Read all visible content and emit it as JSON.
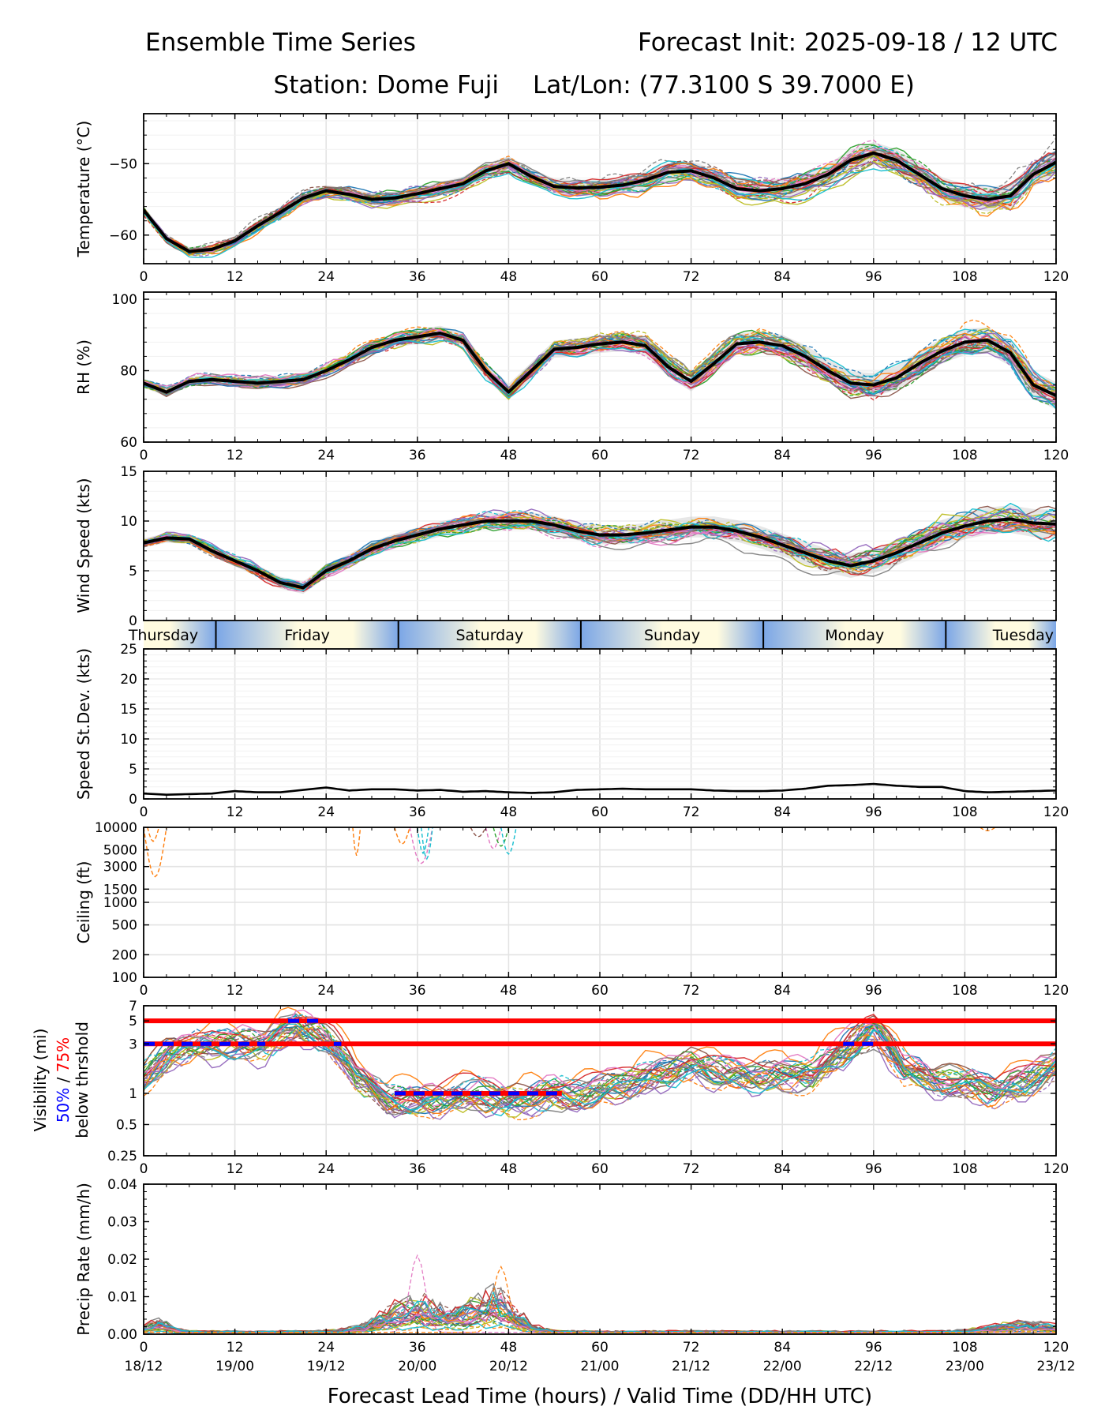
{
  "header": {
    "title_left": "Ensemble Time Series",
    "title_right": "Forecast Init: 2025-09-18 / 12 UTC",
    "station": "Station: Dome Fuji",
    "latlon": "Lat/Lon: (77.3100 S 39.7000 E)"
  },
  "x_axis": {
    "label": "Forecast Lead Time (hours) / Valid Time (DD/HH UTC)",
    "ticks": [
      0,
      12,
      24,
      36,
      48,
      60,
      72,
      84,
      96,
      108,
      120
    ],
    "valid_times": [
      "18/12",
      "19/00",
      "19/12",
      "20/00",
      "20/12",
      "21/00",
      "21/12",
      "22/00",
      "22/12",
      "23/00",
      "23/12"
    ],
    "range": [
      0,
      120
    ]
  },
  "day_band": {
    "days": [
      {
        "label": "Thursday",
        "start": 0,
        "end": 9.5
      },
      {
        "label": "Friday",
        "start": 9.5,
        "end": 33.5
      },
      {
        "label": "Saturday",
        "start": 33.5,
        "end": 57.5
      },
      {
        "label": "Sunday",
        "start": 57.5,
        "end": 81.5
      },
      {
        "label": "Monday",
        "start": 81.5,
        "end": 105.5
      },
      {
        "label": "Tuesday",
        "start": 105.5,
        "end": 120
      }
    ]
  },
  "chart_data": [
    {
      "id": "temperature",
      "type": "line",
      "ylabel": "Temperature (°C)",
      "ylim": [
        -64,
        -43
      ],
      "yticks": [
        -60,
        -50
      ],
      "ytick_labels": [
        "−60",
        "−50"
      ],
      "grid": true,
      "ensemble_members": 30,
      "mean": {
        "x": [
          0,
          3,
          6,
          9,
          12,
          15,
          18,
          21,
          24,
          27,
          30,
          33,
          36,
          39,
          42,
          45,
          48,
          51,
          54,
          57,
          60,
          63,
          66,
          69,
          72,
          75,
          78,
          81,
          84,
          87,
          90,
          93,
          96,
          99,
          102,
          105,
          108,
          111,
          114,
          117,
          120
        ],
        "y": [
          -56.5,
          -60.5,
          -62.3,
          -62.0,
          -60.8,
          -58.7,
          -56.8,
          -54.8,
          -53.8,
          -54.3,
          -55.0,
          -54.8,
          -54.2,
          -53.5,
          -52.8,
          -51.0,
          -50.0,
          -51.8,
          -53.2,
          -53.4,
          -53.3,
          -53.0,
          -52.3,
          -51.2,
          -51.0,
          -52.0,
          -53.5,
          -53.8,
          -53.5,
          -52.8,
          -51.5,
          -49.5,
          -48.5,
          -49.5,
          -51.5,
          -53.5,
          -54.5,
          -55.0,
          -54.5,
          -51.5,
          -49.8
        ]
      }
    },
    {
      "id": "rh",
      "type": "line",
      "ylabel": "RH (%)",
      "ylim": [
        60,
        102
      ],
      "yticks": [
        60,
        80,
        100
      ],
      "ytick_labels": [
        "60",
        "80",
        "100"
      ],
      "grid": true,
      "ensemble_members": 30,
      "mean": {
        "x": [
          0,
          3,
          6,
          9,
          12,
          15,
          18,
          21,
          24,
          27,
          30,
          33,
          36,
          39,
          42,
          45,
          48,
          51,
          54,
          57,
          60,
          63,
          66,
          69,
          72,
          75,
          78,
          81,
          84,
          87,
          90,
          93,
          96,
          99,
          102,
          105,
          108,
          111,
          114,
          117,
          120
        ],
        "y": [
          76.5,
          74.0,
          77.0,
          77.5,
          77.0,
          76.5,
          77.0,
          77.5,
          80.0,
          83.0,
          86.5,
          88.5,
          89.5,
          90.5,
          88.5,
          80.0,
          74.0,
          80.0,
          86.0,
          86.5,
          87.5,
          88.0,
          87.0,
          81.0,
          77.0,
          82.0,
          87.5,
          88.0,
          87.0,
          84.0,
          80.0,
          76.5,
          76.0,
          78.0,
          82.0,
          85.5,
          88.0,
          88.5,
          85.0,
          76.0,
          73.0
        ]
      }
    },
    {
      "id": "wind_speed",
      "type": "line",
      "ylabel": "Wind Speed (kts)",
      "ylim": [
        0,
        15
      ],
      "yticks": [
        0,
        5,
        10,
        15
      ],
      "ytick_labels": [
        "0",
        "5",
        "10",
        "15"
      ],
      "grid": true,
      "ensemble_members": 30,
      "mean": {
        "x": [
          0,
          3,
          6,
          9,
          12,
          15,
          18,
          21,
          24,
          27,
          30,
          33,
          36,
          39,
          42,
          45,
          48,
          51,
          54,
          57,
          60,
          63,
          66,
          69,
          72,
          75,
          78,
          81,
          84,
          87,
          90,
          93,
          96,
          99,
          102,
          105,
          108,
          111,
          114,
          117,
          120
        ],
        "y": [
          7.8,
          8.3,
          8.2,
          7.0,
          6.0,
          5.0,
          3.8,
          3.3,
          5.0,
          6.0,
          7.2,
          8.0,
          8.6,
          9.2,
          9.6,
          10.0,
          10.0,
          10.0,
          9.6,
          9.0,
          8.6,
          8.6,
          8.8,
          9.1,
          9.4,
          9.4,
          9.0,
          8.4,
          7.6,
          6.8,
          6.0,
          5.5,
          6.0,
          6.8,
          7.8,
          8.8,
          9.5,
          10.0,
          10.2,
          9.8,
          9.7
        ]
      }
    },
    {
      "id": "speed_stdev",
      "type": "line",
      "ylabel": "Speed St.Dev. (kts)",
      "ylim": [
        0,
        25
      ],
      "yticks": [
        0,
        5,
        10,
        15,
        20,
        25
      ],
      "ytick_labels": [
        "0",
        "5",
        "10",
        "15",
        "20",
        "25"
      ],
      "grid": true,
      "series": [
        {
          "name": "St.Dev.",
          "x": [
            0,
            3,
            6,
            9,
            12,
            15,
            18,
            21,
            24,
            27,
            30,
            33,
            36,
            39,
            42,
            45,
            48,
            51,
            54,
            57,
            60,
            63,
            66,
            69,
            72,
            75,
            78,
            81,
            84,
            87,
            90,
            93,
            96,
            99,
            102,
            105,
            108,
            111,
            114,
            117,
            120
          ],
          "y": [
            0.9,
            0.7,
            0.8,
            0.9,
            1.3,
            1.1,
            1.1,
            1.5,
            1.9,
            1.4,
            1.6,
            1.6,
            1.4,
            1.5,
            1.2,
            1.3,
            1.1,
            1.0,
            1.1,
            1.5,
            1.6,
            1.7,
            1.6,
            1.6,
            1.6,
            1.4,
            1.3,
            1.3,
            1.4,
            1.7,
            2.2,
            2.3,
            2.5,
            2.2,
            2.0,
            2.0,
            1.3,
            1.1,
            1.2,
            1.3,
            1.4
          ]
        }
      ]
    },
    {
      "id": "ceiling",
      "type": "line",
      "ylabel": "Ceiling (ft)",
      "yscale": "log",
      "ylim": [
        100,
        10000
      ],
      "yticks": [
        100,
        200,
        500,
        1000,
        1500,
        3000,
        5000,
        10000
      ],
      "ytick_labels": [
        "100",
        "200",
        "500",
        "1000",
        "1500",
        "3000",
        "5000",
        "10000"
      ],
      "grid": true,
      "note": "member traces briefly dip below 10000 ft around hours 0-3, 28, 33-38 and 43-48"
    },
    {
      "id": "visibility",
      "type": "line",
      "ylabel": "Visibility (mi)",
      "ylabel_extra": {
        "prefix": "50%",
        "sep": " / ",
        "suffix": "75%",
        "line2": "below thrshold"
      },
      "yscale": "log",
      "ylim": [
        0.25,
        7
      ],
      "yticks": [
        0.25,
        0.5,
        1,
        3,
        5,
        7
      ],
      "ytick_labels": [
        "0.25",
        "0.5",
        "1",
        "3",
        "5",
        "7"
      ],
      "grid": true,
      "ensemble_members": 30,
      "thresholds_75pct": [
        {
          "y": 5,
          "x_range": [
            0,
            120
          ],
          "color": "#ff0000"
        },
        {
          "y": 3,
          "x_range": [
            0,
            120
          ],
          "color": "#ff0000"
        },
        {
          "y": 1,
          "x_range": [
            33,
            55
          ],
          "color": "#ff0000"
        }
      ],
      "thresholds_50pct": [
        {
          "y": 3,
          "x_range": [
            0,
            16
          ],
          "color": "#0000ff"
        },
        {
          "y": 5,
          "x_range": [
            19,
            23
          ],
          "color": "#0000ff"
        },
        {
          "y": 3,
          "x_range": [
            25,
            26
          ],
          "color": "#0000ff"
        },
        {
          "y": 1,
          "x_range": [
            33,
            55
          ],
          "color": "#0000ff"
        },
        {
          "y": 3,
          "x_range": [
            92,
            96
          ],
          "color": "#0000ff"
        }
      ]
    },
    {
      "id": "precip",
      "type": "line",
      "ylabel": "Precip Rate (mm/h)",
      "ylim": [
        0,
        0.04
      ],
      "yticks": [
        0.0,
        0.01,
        0.02,
        0.03,
        0.04
      ],
      "ytick_labels": [
        "0.00",
        "0.01",
        "0.02",
        "0.03",
        "0.04"
      ],
      "grid": false,
      "ensemble_members": 30,
      "peak_values": [
        {
          "x": 36,
          "y": 0.021
        },
        {
          "x": 47,
          "y": 0.018
        }
      ]
    }
  ],
  "colors": {
    "mean_line": "#000000",
    "threshold_75": "#ff0000",
    "threshold_50": "#0000ff",
    "grid": "#e3e3e3",
    "day_gradient_start": "#7ba6e6",
    "day_gradient_end": "#fffbe0",
    "member_palette": [
      "#1f77b4",
      "#ff7f0e",
      "#2ca02c",
      "#d62728",
      "#9467bd",
      "#8c564b",
      "#e377c2",
      "#7f7f7f",
      "#bcbd22",
      "#17becf"
    ]
  }
}
